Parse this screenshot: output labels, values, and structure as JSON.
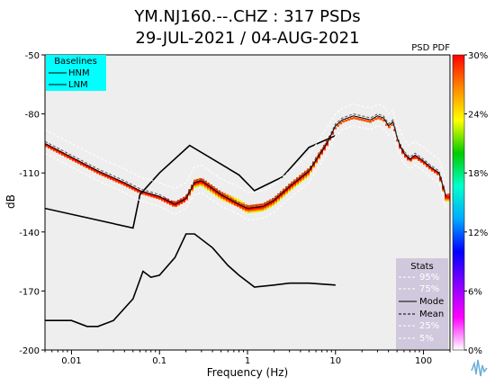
{
  "chart_data": {
    "type": "heatmap",
    "title_line1": "YM.NJ160.--.CHZ : 317 PSDs",
    "title_line2": "29-JUL-2021 / 04-AUG-2021",
    "xlabel": "Frequency (Hz)",
    "ylabel": "dB",
    "x_scale": "log",
    "xlim": [
      0.005,
      200
    ],
    "ylim": [
      -200,
      -50
    ],
    "x_ticks": [
      {
        "value": 0.01,
        "label": "0.01"
      },
      {
        "value": 0.1,
        "label": "0.1"
      },
      {
        "value": 1,
        "label": "1"
      },
      {
        "value": 10,
        "label": "10"
      },
      {
        "value": 100,
        "label": "100"
      }
    ],
    "y_ticks": [
      {
        "value": -50,
        "label": "-50"
      },
      {
        "value": -80,
        "label": "-80"
      },
      {
        "value": -110,
        "label": "-110"
      },
      {
        "value": -140,
        "label": "-140"
      },
      {
        "value": -170,
        "label": "-170"
      },
      {
        "value": -200,
        "label": "-200"
      }
    ],
    "grid": false,
    "background_color": "#eeeeee",
    "colorbar": {
      "title": "PSD PDF",
      "range": [
        0,
        30
      ],
      "ticks": [
        {
          "value": 0,
          "label": "0%"
        },
        {
          "value": 6,
          "label": "6%"
        },
        {
          "value": 12,
          "label": "12%"
        },
        {
          "value": 18,
          "label": "18%"
        },
        {
          "value": 24,
          "label": "24%"
        },
        {
          "value": 30,
          "label": "30%"
        }
      ],
      "colors": [
        "#ffffff",
        "#ff00ff",
        "#8800ff",
        "#0000ff",
        "#00aaff",
        "#00ffcc",
        "#00cc00",
        "#ffff00",
        "#ff8800",
        "#ff0000"
      ]
    },
    "baselines_legend": {
      "title": "Baselines",
      "entries": [
        "HNM",
        "LNM"
      ],
      "placement": "top-left",
      "background": "#00ffff"
    },
    "stats_legend": {
      "title": "Stats",
      "entries": [
        "95%",
        "75%",
        "Mode",
        "Mean",
        "25%",
        "5%"
      ],
      "placement": "bottom-right",
      "background": "#d0c8dc"
    },
    "series": [
      {
        "name": "HNM",
        "color": "#000000",
        "x": [
          0.005,
          0.05,
          0.06,
          0.1,
          0.22,
          0.8,
          1.2,
          2.5,
          5,
          10
        ],
        "y": [
          -128,
          -138,
          -121,
          -110,
          -96,
          -111,
          -119,
          -112,
          -97,
          -91
        ]
      },
      {
        "name": "LNM",
        "color": "#000000",
        "x": [
          0.005,
          0.01,
          0.015,
          0.02,
          0.03,
          0.05,
          0.065,
          0.08,
          0.1,
          0.15,
          0.2,
          0.25,
          0.4,
          0.6,
          0.8,
          1.2,
          2,
          3,
          5,
          10
        ],
        "y": [
          -185,
          -185,
          -188,
          -188,
          -185,
          -174,
          -160,
          -163,
          -162,
          -153,
          -141,
          -141,
          -148,
          -157,
          -162,
          -168,
          -167,
          -166,
          -166,
          -167
        ]
      },
      {
        "name": "Mode",
        "color": "#000000",
        "x": [
          0.005,
          0.01,
          0.02,
          0.04,
          0.06,
          0.1,
          0.15,
          0.2,
          0.25,
          0.3,
          0.5,
          0.8,
          1.0,
          1.5,
          2,
          3,
          5,
          8,
          10,
          12,
          16,
          20,
          25,
          30,
          35,
          40,
          45,
          50,
          55,
          60,
          70,
          80,
          100,
          120,
          150,
          180
        ],
        "y": [
          -95,
          -102,
          -109,
          -115,
          -119,
          -122,
          -126,
          -123,
          -115,
          -114,
          -121,
          -126,
          -128,
          -127,
          -124,
          -117,
          -109,
          -95,
          -86,
          -83,
          -81,
          -82,
          -83,
          -81,
          -82,
          -86,
          -84,
          -92,
          -97,
          -100,
          -103,
          -101,
          -104,
          -107,
          -110,
          -122
        ]
      },
      {
        "name": "Mean",
        "color": "#555555",
        "dashed": true,
        "x": [
          0.005,
          0.01,
          0.02,
          0.04,
          0.06,
          0.1,
          0.15,
          0.2,
          0.25,
          0.3,
          0.5,
          0.8,
          1.0,
          1.5,
          2,
          3,
          5,
          8,
          10,
          12,
          16,
          20,
          25,
          30,
          35,
          40,
          45,
          50,
          55,
          60,
          70,
          80,
          100,
          120,
          150,
          180
        ],
        "y": [
          -94,
          -101,
          -108,
          -114,
          -118,
          -121,
          -125,
          -122,
          -114,
          -113,
          -120,
          -125,
          -127,
          -126,
          -123,
          -116,
          -108,
          -94,
          -85,
          -82,
          -80,
          -81,
          -82,
          -80,
          -81,
          -85,
          -83,
          -91,
          -96,
          -99,
          -102,
          -100,
          -103,
          -106,
          -109,
          -121
        ]
      },
      {
        "name": "95%",
        "color": "#ffffff",
        "dashed": true,
        "x": [
          0.005,
          0.01,
          0.02,
          0.04,
          0.06,
          0.1,
          0.15,
          0.2,
          0.25,
          0.3,
          0.5,
          0.8,
          1.0,
          1.5,
          2,
          3,
          5,
          8,
          10,
          12,
          16,
          20,
          25,
          30,
          35,
          40,
          45,
          50,
          55,
          60,
          70,
          80,
          100,
          120,
          150,
          180
        ],
        "y": [
          -88,
          -95,
          -102,
          -108,
          -112,
          -115,
          -118,
          -115,
          -107,
          -106,
          -113,
          -117,
          -120,
          -119,
          -116,
          -109,
          -101,
          -87,
          -80,
          -77,
          -75,
          -76,
          -77,
          -75,
          -76,
          -80,
          -78,
          -86,
          -89,
          -93,
          -96,
          -94,
          -97,
          -100,
          -103,
          -114
        ]
      },
      {
        "name": "5%",
        "color": "#ffffff",
        "dashed": true,
        "x": [
          0.005,
          0.01,
          0.02,
          0.04,
          0.06,
          0.1,
          0.15,
          0.2,
          0.25,
          0.3,
          0.5,
          0.8,
          1.0,
          1.5,
          2,
          3,
          5,
          8,
          10,
          12,
          16,
          20,
          25,
          30,
          35,
          40,
          45,
          50,
          55,
          60,
          70,
          80,
          100,
          120,
          150,
          180
        ],
        "y": [
          -100,
          -107,
          -114,
          -120,
          -124,
          -127,
          -131,
          -128,
          -121,
          -120,
          -127,
          -131,
          -134,
          -133,
          -130,
          -123,
          -115,
          -100,
          -91,
          -88,
          -86,
          -87,
          -88,
          -86,
          -87,
          -91,
          -89,
          -97,
          -102,
          -105,
          -108,
          -106,
          -109,
          -112,
          -115,
          -128
        ]
      }
    ]
  }
}
